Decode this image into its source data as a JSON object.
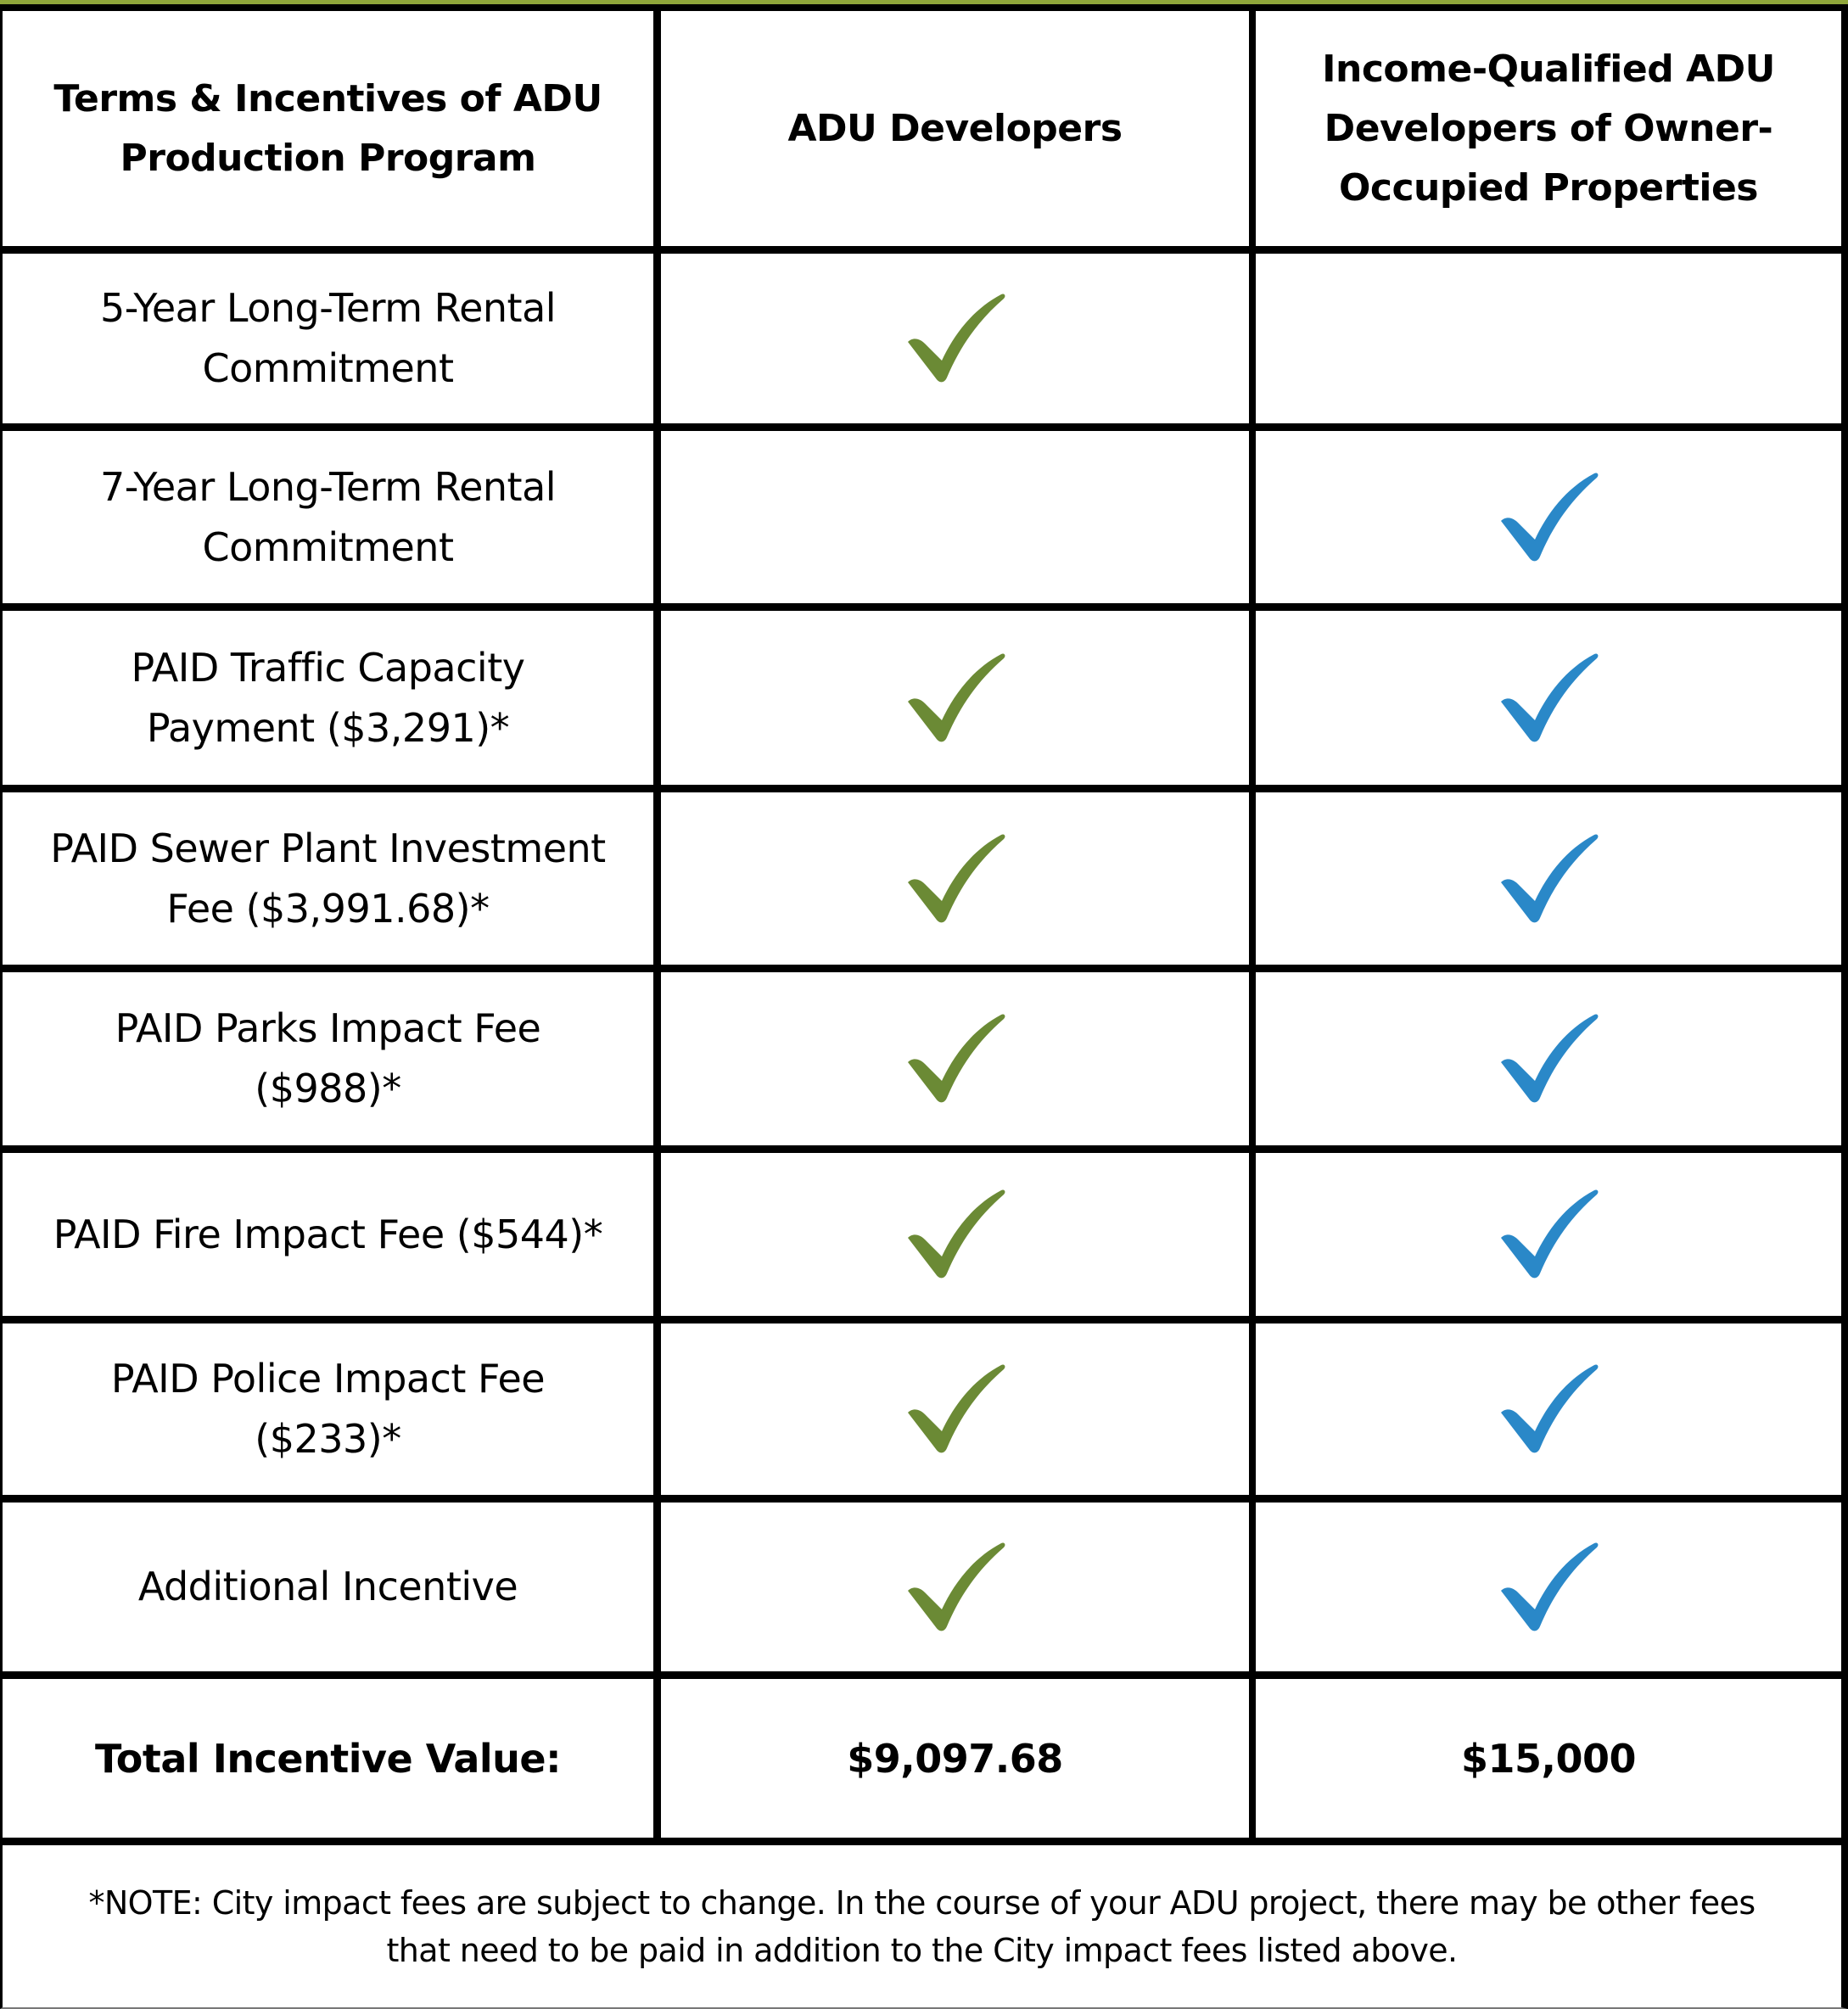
{
  "colors": {
    "accent_bar": "#8fa63a",
    "check_green": "#6b8a35",
    "check_blue": "#2a88c8",
    "border": "#000000"
  },
  "header": {
    "col1": [
      "Terms & Incentives of ADU",
      "Production Program"
    ],
    "col2": [
      "ADU Developers"
    ],
    "col3": [
      "Income-Qualified ADU",
      "Developers of Owner-",
      "Occupied Properties"
    ]
  },
  "rows": [
    {
      "label": [
        "5-Year Long-Term Rental",
        "Commitment"
      ],
      "adu_developers": true,
      "income_qualified": false
    },
    {
      "label": [
        "7-Year Long-Term Rental",
        "Commitment"
      ],
      "adu_developers": false,
      "income_qualified": true
    },
    {
      "label": [
        "PAID Traffic Capacity",
        "Payment ($3,291)*"
      ],
      "adu_developers": true,
      "income_qualified": true
    },
    {
      "label": [
        "PAID Sewer Plant Investment",
        "Fee ($3,991.68)*"
      ],
      "adu_developers": true,
      "income_qualified": true
    },
    {
      "label": [
        "PAID Parks Impact Fee",
        "($988)*"
      ],
      "adu_developers": true,
      "income_qualified": true
    },
    {
      "label": [
        "PAID Fire Impact Fee ($544)*"
      ],
      "adu_developers": true,
      "income_qualified": true
    },
    {
      "label": [
        "PAID Police Impact Fee",
        "($233)*"
      ],
      "adu_developers": true,
      "income_qualified": true
    },
    {
      "label": [
        "Additional Incentive"
      ],
      "adu_developers": true,
      "income_qualified": true
    }
  ],
  "totals": {
    "label": "Total Incentive Value:",
    "adu_developers": "$9,097.68",
    "income_qualified": "$15,000"
  },
  "note": [
    "*NOTE: City impact fees are subject to change. In the course of your ADU project, there may be other fees",
    "that need to be paid in addition to the City impact fees listed above."
  ],
  "icons": {
    "check": "checkmark-icon"
  }
}
